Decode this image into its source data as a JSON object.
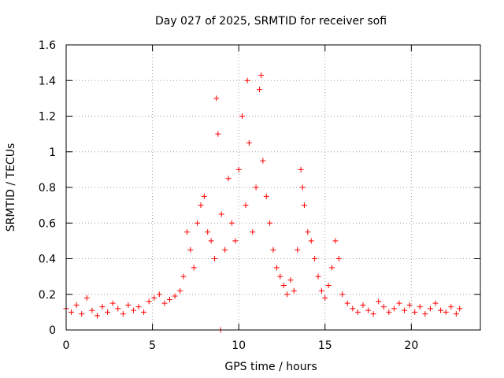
{
  "chart_data": {
    "type": "scatter",
    "title": "Day 027 of 2025, SRMTID for receiver sofi",
    "xlabel": "GPS time / hours",
    "ylabel": "SRMTID / TECUs",
    "xlim": [
      0,
      24
    ],
    "ylim": [
      0,
      1.6
    ],
    "xticks": [
      0,
      5,
      10,
      15,
      20
    ],
    "yticks": [
      0,
      0.2,
      0.4,
      0.6,
      0.8,
      1,
      1.2,
      1.4,
      1.6
    ],
    "xtick_labels": [
      "0",
      "5",
      "10",
      "15",
      "20"
    ],
    "ytick_labels": [
      "0",
      "0.2",
      "0.4",
      "0.6",
      "0.8",
      "1",
      "1.2",
      "1.4",
      "1.6"
    ],
    "grid": true,
    "marker": "+",
    "color": "#ff0000",
    "series": [
      {
        "name": "sofi",
        "x": [
          0.0,
          0.3,
          0.6,
          0.9,
          1.2,
          1.5,
          1.8,
          2.1,
          2.4,
          2.7,
          3.0,
          3.3,
          3.6,
          3.9,
          4.2,
          4.5,
          4.8,
          5.1,
          5.4,
          5.7,
          6.0,
          6.3,
          6.6,
          6.8,
          7.0,
          7.2,
          7.4,
          7.6,
          7.8,
          8.0,
          8.2,
          8.4,
          8.6,
          8.7,
          8.8,
          9.0,
          9.2,
          9.4,
          9.6,
          9.8,
          10.0,
          10.2,
          10.4,
          10.5,
          10.6,
          10.8,
          11.0,
          11.2,
          11.3,
          11.4,
          11.6,
          11.8,
          12.0,
          12.2,
          12.4,
          12.6,
          12.8,
          13.0,
          13.2,
          13.4,
          13.6,
          13.7,
          13.8,
          14.0,
          14.2,
          14.4,
          14.6,
          14.8,
          15.0,
          15.2,
          15.4,
          15.6,
          15.8,
          16.0,
          16.3,
          16.6,
          16.9,
          17.2,
          17.5,
          17.8,
          18.1,
          18.4,
          18.7,
          19.0,
          19.3,
          19.6,
          19.9,
          20.2,
          20.5,
          20.8,
          21.1,
          21.4,
          21.7,
          22.0,
          22.3,
          22.6,
          22.8,
          8.95
        ],
        "y": [
          0.12,
          0.1,
          0.14,
          0.09,
          0.18,
          0.11,
          0.08,
          0.13,
          0.1,
          0.15,
          0.12,
          0.09,
          0.14,
          0.11,
          0.13,
          0.1,
          0.16,
          0.18,
          0.2,
          0.15,
          0.17,
          0.19,
          0.22,
          0.3,
          0.55,
          0.45,
          0.35,
          0.6,
          0.7,
          0.75,
          0.55,
          0.5,
          0.4,
          1.3,
          1.1,
          0.65,
          0.45,
          0.85,
          0.6,
          0.5,
          0.9,
          1.2,
          0.7,
          1.4,
          1.05,
          0.55,
          0.8,
          1.35,
          1.43,
          0.95,
          0.75,
          0.6,
          0.45,
          0.35,
          0.3,
          0.25,
          0.2,
          0.28,
          0.22,
          0.45,
          0.9,
          0.8,
          0.7,
          0.55,
          0.5,
          0.4,
          0.3,
          0.22,
          0.18,
          0.25,
          0.35,
          0.5,
          0.4,
          0.2,
          0.15,
          0.12,
          0.1,
          0.14,
          0.11,
          0.09,
          0.16,
          0.13,
          0.1,
          0.12,
          0.15,
          0.11,
          0.14,
          0.1,
          0.13,
          0.09,
          0.12,
          0.15,
          0.11,
          0.1,
          0.13,
          0.09,
          0.12,
          0.0
        ]
      }
    ]
  }
}
